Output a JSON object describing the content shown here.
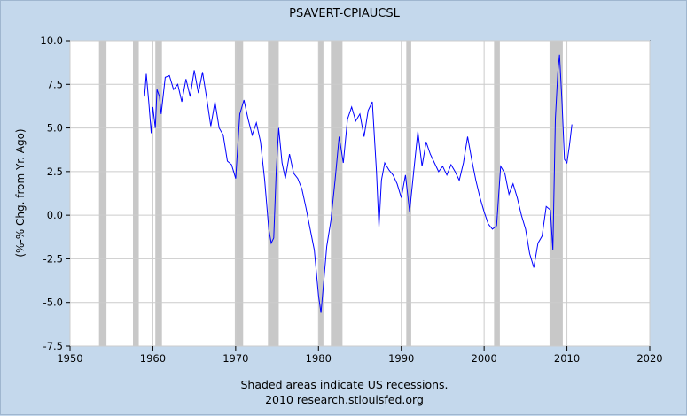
{
  "chart_data": {
    "type": "line",
    "title": "PSAVERT-CPIAUCSL",
    "ylabel": "(%-% Chg. from Yr. Ago)",
    "xlabel": "",
    "xlim": [
      1950,
      2020
    ],
    "ylim": [
      -7.5,
      10.0
    ],
    "x_ticks": [
      1950,
      1960,
      1970,
      1980,
      1990,
      2000,
      2010,
      2020
    ],
    "y_ticks": [
      "10.0",
      "7.5",
      "5.0",
      "2.5",
      "0.0",
      "-2.5",
      "-5.0",
      "-7.5"
    ],
    "grid": true,
    "line_color": "#0000ff",
    "recession_color": "#c8c8c8",
    "recessions": [
      [
        1953.5,
        1954.4
      ],
      [
        1957.6,
        1958.3
      ],
      [
        1960.3,
        1961.1
      ],
      [
        1969.9,
        1970.9
      ],
      [
        1973.9,
        1975.2
      ],
      [
        1980.0,
        1980.6
      ],
      [
        1981.5,
        1982.9
      ],
      [
        1990.6,
        1991.2
      ],
      [
        2001.2,
        2001.9
      ],
      [
        2007.9,
        2009.5
      ]
    ],
    "series": [
      {
        "x": [
          1959.0,
          1959.2,
          1959.5,
          1959.8,
          1960.0,
          1960.3,
          1960.5,
          1960.8,
          1961.0,
          1961.5,
          1962.0,
          1962.5,
          1963.0,
          1963.5,
          1964.0,
          1964.5,
          1965.0,
          1965.5,
          1966.0,
          1966.5,
          1967.0,
          1967.5,
          1968.0,
          1968.5,
          1969.0,
          1969.5,
          1970.0,
          1970.5,
          1971.0,
          1971.5,
          1972.0,
          1972.5,
          1973.0,
          1973.5,
          1974.0,
          1974.3,
          1974.6,
          1974.9,
          1975.2,
          1975.6,
          1976.0,
          1976.5,
          1977.0,
          1977.5,
          1978.0,
          1978.5,
          1979.0,
          1979.5,
          1980.0,
          1980.3,
          1980.6,
          1981.0,
          1981.5,
          1982.0,
          1982.5,
          1983.0,
          1983.5,
          1984.0,
          1984.5,
          1985.0,
          1985.5,
          1986.0,
          1986.5,
          1987.0,
          1987.3,
          1987.6,
          1988.0,
          1988.5,
          1989.0,
          1989.5,
          1990.0,
          1990.5,
          1991.0,
          1991.5,
          1992.0,
          1992.5,
          1993.0,
          1993.5,
          1994.0,
          1994.5,
          1995.0,
          1995.5,
          1996.0,
          1996.5,
          1997.0,
          1997.5,
          1998.0,
          1998.5,
          1999.0,
          1999.5,
          2000.0,
          2000.5,
          2001.0,
          2001.5,
          2002.0,
          2002.5,
          2003.0,
          2003.5,
          2004.0,
          2004.5,
          2005.0,
          2005.5,
          2006.0,
          2006.5,
          2007.0,
          2007.5,
          2008.0,
          2008.3,
          2008.6,
          2008.9,
          2009.1,
          2009.4,
          2009.7,
          2010.0,
          2010.3,
          2010.6
        ],
        "y": [
          6.8,
          8.1,
          6.5,
          4.7,
          6.2,
          5.0,
          7.2,
          6.8,
          5.8,
          7.9,
          8.0,
          7.2,
          7.5,
          6.5,
          7.8,
          6.8,
          8.3,
          7.0,
          8.2,
          6.7,
          5.1,
          6.5,
          5.0,
          4.6,
          3.1,
          2.9,
          2.1,
          5.8,
          6.6,
          5.5,
          4.6,
          5.3,
          4.2,
          2.0,
          -0.8,
          -1.6,
          -1.3,
          2.5,
          5.0,
          3.0,
          2.1,
          3.5,
          2.4,
          2.1,
          1.5,
          0.4,
          -0.8,
          -2.0,
          -4.6,
          -5.6,
          -4.0,
          -1.8,
          -0.3,
          2.0,
          4.5,
          3.0,
          5.5,
          6.2,
          5.4,
          5.8,
          4.5,
          6.0,
          6.5,
          2.5,
          -0.7,
          2.0,
          3.0,
          2.6,
          2.3,
          1.8,
          1.0,
          2.3,
          0.2,
          2.5,
          4.8,
          2.8,
          4.2,
          3.5,
          3.0,
          2.5,
          2.8,
          2.3,
          2.9,
          2.5,
          2.0,
          3.0,
          4.5,
          3.2,
          2.0,
          1.0,
          0.2,
          -0.5,
          -0.8,
          -0.6,
          2.8,
          2.4,
          1.2,
          1.8,
          1.0,
          0.0,
          -0.8,
          -2.2,
          -3.0,
          -1.6,
          -1.2,
          0.5,
          0.3,
          -2.0,
          5.5,
          8.2,
          9.2,
          6.5,
          3.2,
          3.0,
          4.0,
          5.2
        ]
      }
    ]
  },
  "footer": {
    "note": "Shaded areas indicate US recessions.",
    "source": "2010 research.stlouisfed.org"
  }
}
